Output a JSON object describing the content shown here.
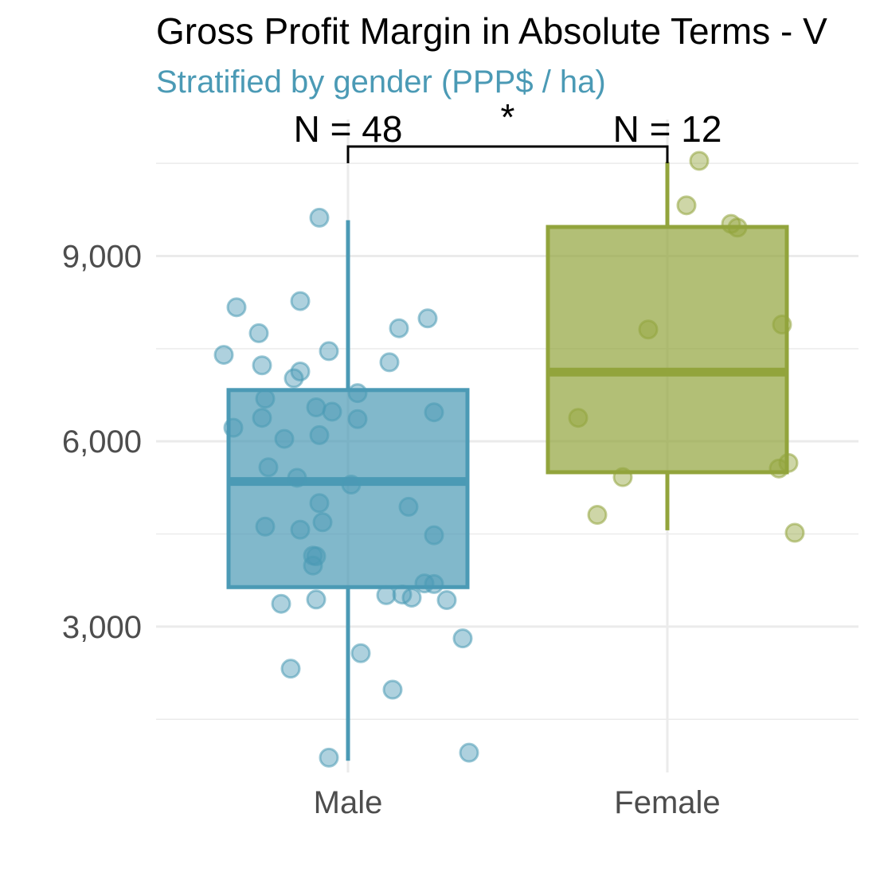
{
  "chart_data": {
    "type": "box",
    "title": "Gross Profit Margin in Absolute Terms - V",
    "subtitle": "Stratified by gender (PPP$ / ha)",
    "xlabel": "",
    "ylabel": "",
    "categories": [
      "Male",
      "Female"
    ],
    "y_ticks": [
      3000,
      6000,
      9000
    ],
    "y_tick_labels": [
      "3,000",
      "6,000",
      "9,000"
    ],
    "ylim": [
      640,
      11210
    ],
    "grid": true,
    "legend": "none",
    "colors": {
      "Male": "#4b9ab5",
      "Female": "#92a43c",
      "subtitle": "#4b9ab5",
      "grid": "#ebebeb"
    },
    "boxes": [
      {
        "group": "Male",
        "n_label": "N = 48",
        "whisker_low": 830,
        "q1": 3640,
        "median": 5350,
        "q3": 6830,
        "whisker_high": 9580
      },
      {
        "group": "Female",
        "n_label": "N = 12",
        "whisker_low": 4560,
        "q1": 5500,
        "median": 7120,
        "q3": 9470,
        "whisker_high": 10520
      }
    ],
    "significance": {
      "label": "*",
      "between": [
        "Male",
        "Female"
      ]
    },
    "points": [
      {
        "group": "Male",
        "jitter": -0.09,
        "y": 9620
      },
      {
        "group": "Male",
        "jitter": -0.35,
        "y": 8170
      },
      {
        "group": "Male",
        "jitter": -0.15,
        "y": 8270
      },
      {
        "group": "Male",
        "jitter": -0.28,
        "y": 7750
      },
      {
        "group": "Male",
        "jitter": 0.25,
        "y": 7990
      },
      {
        "group": "Male",
        "jitter": 0.16,
        "y": 7830
      },
      {
        "group": "Male",
        "jitter": -0.39,
        "y": 7400
      },
      {
        "group": "Male",
        "jitter": -0.06,
        "y": 7460
      },
      {
        "group": "Male",
        "jitter": -0.27,
        "y": 7230
      },
      {
        "group": "Male",
        "jitter": 0.13,
        "y": 7280
      },
      {
        "group": "Male",
        "jitter": -0.15,
        "y": 7130
      },
      {
        "group": "Male",
        "jitter": -0.17,
        "y": 7020
      },
      {
        "group": "Male",
        "jitter": 0.03,
        "y": 6780
      },
      {
        "group": "Male",
        "jitter": -0.26,
        "y": 6690
      },
      {
        "group": "Male",
        "jitter": -0.1,
        "y": 6550
      },
      {
        "group": "Male",
        "jitter": -0.05,
        "y": 6480
      },
      {
        "group": "Male",
        "jitter": 0.27,
        "y": 6470
      },
      {
        "group": "Male",
        "jitter": -0.27,
        "y": 6380
      },
      {
        "group": "Male",
        "jitter": 0.03,
        "y": 6360
      },
      {
        "group": "Male",
        "jitter": -0.36,
        "y": 6220
      },
      {
        "group": "Male",
        "jitter": -0.09,
        "y": 6100
      },
      {
        "group": "Male",
        "jitter": -0.2,
        "y": 6040
      },
      {
        "group": "Male",
        "jitter": -0.25,
        "y": 5580
      },
      {
        "group": "Male",
        "jitter": -0.16,
        "y": 5410
      },
      {
        "group": "Male",
        "jitter": 0.01,
        "y": 5300
      },
      {
        "group": "Male",
        "jitter": -0.09,
        "y": 5000
      },
      {
        "group": "Male",
        "jitter": 0.19,
        "y": 4940
      },
      {
        "group": "Male",
        "jitter": -0.08,
        "y": 4690
      },
      {
        "group": "Male",
        "jitter": -0.26,
        "y": 4620
      },
      {
        "group": "Male",
        "jitter": -0.15,
        "y": 4570
      },
      {
        "group": "Male",
        "jitter": 0.27,
        "y": 4480
      },
      {
        "group": "Male",
        "jitter": -0.1,
        "y": 4140
      },
      {
        "group": "Male",
        "jitter": -0.11,
        "y": 4150
      },
      {
        "group": "Male",
        "jitter": -0.11,
        "y": 3990
      },
      {
        "group": "Male",
        "jitter": 0.24,
        "y": 3700
      },
      {
        "group": "Male",
        "jitter": 0.27,
        "y": 3690
      },
      {
        "group": "Male",
        "jitter": 0.17,
        "y": 3520
      },
      {
        "group": "Male",
        "jitter": 0.2,
        "y": 3470
      },
      {
        "group": "Male",
        "jitter": 0.12,
        "y": 3510
      },
      {
        "group": "Male",
        "jitter": -0.1,
        "y": 3440
      },
      {
        "group": "Male",
        "jitter": 0.31,
        "y": 3430
      },
      {
        "group": "Male",
        "jitter": -0.21,
        "y": 3370
      },
      {
        "group": "Male",
        "jitter": 0.36,
        "y": 2810
      },
      {
        "group": "Male",
        "jitter": 0.04,
        "y": 2570
      },
      {
        "group": "Male",
        "jitter": -0.18,
        "y": 2320
      },
      {
        "group": "Male",
        "jitter": 0.14,
        "y": 1980
      },
      {
        "group": "Male",
        "jitter": -0.06,
        "y": 880
      },
      {
        "group": "Male",
        "jitter": 0.38,
        "y": 960
      },
      {
        "group": "Female",
        "jitter": 0.1,
        "y": 10540
      },
      {
        "group": "Female",
        "jitter": 0.06,
        "y": 9820
      },
      {
        "group": "Female",
        "jitter": 0.2,
        "y": 9520
      },
      {
        "group": "Female",
        "jitter": 0.22,
        "y": 9460
      },
      {
        "group": "Female",
        "jitter": -0.06,
        "y": 7810
      },
      {
        "group": "Female",
        "jitter": 0.36,
        "y": 7890
      },
      {
        "group": "Female",
        "jitter": -0.28,
        "y": 6380
      },
      {
        "group": "Female",
        "jitter": 0.38,
        "y": 5650
      },
      {
        "group": "Female",
        "jitter": 0.35,
        "y": 5560
      },
      {
        "group": "Female",
        "jitter": -0.14,
        "y": 5420
      },
      {
        "group": "Female",
        "jitter": -0.22,
        "y": 4810
      },
      {
        "group": "Female",
        "jitter": 0.4,
        "y": 4520
      }
    ]
  }
}
